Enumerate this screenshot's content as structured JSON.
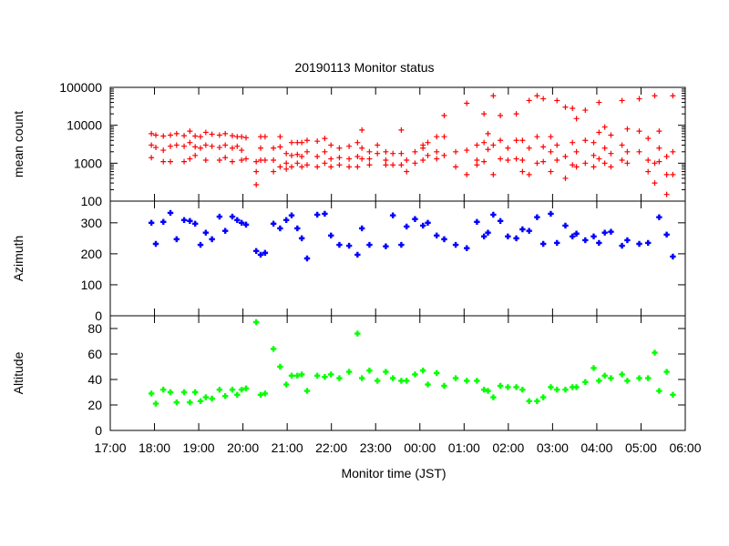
{
  "chart_data": [
    {
      "type": "scatter",
      "title": "20190113 Monitor status",
      "xlabel": "Monitor time (JST)",
      "ylabel": "mean count",
      "yscale": "log",
      "ylim": [
        100,
        100000
      ],
      "yticks": [
        "100",
        "1000",
        "10000",
        "100000"
      ],
      "ytick_values": [
        100,
        1000,
        10000,
        100000
      ],
      "color": "#ff0000",
      "marker": "plus",
      "points": [
        {
          "x": 17.93,
          "y": [
            6000,
            3000,
            1400
          ]
        },
        {
          "x": 18.03,
          "y": [
            5500,
            2600
          ]
        },
        {
          "x": 18.2,
          "y": [
            5200,
            2200,
            1100
          ]
        },
        {
          "x": 18.36,
          "y": [
            5500,
            2800,
            1100
          ]
        },
        {
          "x": 18.5,
          "y": [
            6000,
            3000
          ]
        },
        {
          "x": 18.67,
          "y": [
            5300,
            2800,
            1100
          ]
        },
        {
          "x": 18.8,
          "y": [
            7000,
            3500,
            1300
          ]
        },
        {
          "x": 18.92,
          "y": [
            5200,
            2700,
            1600
          ]
        },
        {
          "x": 19.04,
          "y": [
            5000,
            2500
          ]
        },
        {
          "x": 19.16,
          "y": [
            6500,
            3000,
            1200
          ]
        },
        {
          "x": 19.3,
          "y": [
            5800,
            2800
          ]
        },
        {
          "x": 19.47,
          "y": [
            5500,
            2600,
            1200
          ]
        },
        {
          "x": 19.6,
          "y": [
            6000,
            3000,
            1400
          ]
        },
        {
          "x": 19.76,
          "y": [
            5300,
            2500,
            1100
          ]
        },
        {
          "x": 19.87,
          "y": [
            5000,
            2800
          ]
        },
        {
          "x": 19.97,
          "y": [
            5000,
            2200,
            1200
          ]
        },
        {
          "x": 20.07,
          "y": [
            4700,
            1300
          ]
        },
        {
          "x": 20.3,
          "y": [
            1100,
            600,
            270
          ]
        },
        {
          "x": 20.4,
          "y": [
            5000,
            2500,
            1200
          ]
        },
        {
          "x": 20.5,
          "y": [
            5000,
            1200
          ]
        },
        {
          "x": 20.69,
          "y": [
            2500,
            1200,
            600
          ]
        },
        {
          "x": 20.84,
          "y": [
            5000,
            2700,
            800
          ]
        },
        {
          "x": 20.98,
          "y": [
            1800,
            1000,
            700
          ]
        },
        {
          "x": 21.1,
          "y": [
            3500,
            1600,
            800
          ]
        },
        {
          "x": 21.23,
          "y": [
            3500,
            1700,
            1000
          ]
        },
        {
          "x": 21.33,
          "y": [
            3500,
            1500,
            800
          ]
        },
        {
          "x": 21.45,
          "y": [
            4000,
            2000,
            900
          ]
        },
        {
          "x": 21.68,
          "y": [
            3800,
            1500,
            800
          ]
        },
        {
          "x": 21.85,
          "y": [
            4500,
            2000,
            1000
          ]
        },
        {
          "x": 21.99,
          "y": [
            3000,
            1300,
            800
          ]
        },
        {
          "x": 22.18,
          "y": [
            2500,
            1400,
            900
          ]
        },
        {
          "x": 22.4,
          "y": [
            2800,
            1300,
            800
          ]
        },
        {
          "x": 22.59,
          "y": [
            3500,
            1500,
            800
          ]
        },
        {
          "x": 22.69,
          "y": [
            7500,
            2500,
            1300
          ]
        },
        {
          "x": 22.86,
          "y": [
            2000,
            1300,
            900
          ]
        },
        {
          "x": 23.04,
          "y": [
            3000,
            1800
          ]
        },
        {
          "x": 23.23,
          "y": [
            2000,
            1200,
            900
          ]
        },
        {
          "x": 23.39,
          "y": [
            1800,
            900
          ]
        },
        {
          "x": 23.58,
          "y": [
            7500,
            1800,
            900
          ]
        },
        {
          "x": 23.7,
          "y": [
            1200,
            600
          ]
        },
        {
          "x": 23.89,
          "y": [
            2000,
            1000
          ]
        },
        {
          "x": 24.07,
          "y": [
            3000,
            2500,
            1200
          ]
        },
        {
          "x": 24.18,
          "y": [
            3500,
            1600
          ]
        },
        {
          "x": 24.38,
          "y": [
            5000,
            2000,
            1300
          ]
        },
        {
          "x": 24.55,
          "y": [
            18000,
            5000,
            1600
          ]
        },
        {
          "x": 24.81,
          "y": [
            2000,
            800
          ]
        },
        {
          "x": 25.06,
          "y": [
            38000,
            2200,
            500
          ]
        },
        {
          "x": 25.29,
          "y": [
            3000,
            1200,
            900
          ]
        },
        {
          "x": 25.45,
          "y": [
            20000,
            3500,
            1100
          ]
        },
        {
          "x": 25.54,
          "y": [
            6000,
            2300
          ]
        },
        {
          "x": 25.66,
          "y": [
            60000,
            3000,
            500
          ]
        },
        {
          "x": 25.82,
          "y": [
            18000,
            4000,
            1300
          ]
        },
        {
          "x": 25.99,
          "y": [
            2500,
            1200
          ]
        },
        {
          "x": 26.18,
          "y": [
            20000,
            4000,
            1300
          ]
        },
        {
          "x": 26.32,
          "y": [
            4000,
            1200,
            600
          ]
        },
        {
          "x": 26.47,
          "y": [
            45000,
            2500,
            500
          ]
        },
        {
          "x": 26.65,
          "y": [
            60000,
            5000,
            1000
          ]
        },
        {
          "x": 26.79,
          "y": [
            50000,
            2700,
            1100
          ]
        },
        {
          "x": 26.96,
          "y": [
            5000,
            2000,
            600
          ]
        },
        {
          "x": 27.1,
          "y": [
            45000,
            3000,
            1200
          ]
        },
        {
          "x": 27.29,
          "y": [
            30000,
            1500,
            400
          ]
        },
        {
          "x": 27.45,
          "y": [
            28000,
            3500,
            900
          ]
        },
        {
          "x": 27.54,
          "y": [
            15000,
            2000,
            800
          ]
        },
        {
          "x": 27.74,
          "y": [
            25000,
            4000,
            1000
          ]
        },
        {
          "x": 27.93,
          "y": [
            3500,
            1600,
            800
          ]
        },
        {
          "x": 28.05,
          "y": [
            40000,
            6500,
            1300
          ]
        },
        {
          "x": 28.18,
          "y": [
            9000,
            2500,
            1000
          ]
        },
        {
          "x": 28.32,
          "y": [
            5500,
            1800,
            800
          ]
        },
        {
          "x": 28.57,
          "y": [
            45000,
            3000,
            1200
          ]
        },
        {
          "x": 28.69,
          "y": [
            8000,
            2000,
            1000
          ]
        },
        {
          "x": 28.96,
          "y": [
            50000,
            7000,
            2000
          ]
        },
        {
          "x": 29.16,
          "y": [
            4500,
            1200,
            600
          ]
        },
        {
          "x": 29.31,
          "y": [
            60000,
            1000,
            300
          ]
        },
        {
          "x": 29.41,
          "y": [
            7000,
            2500,
            1100
          ]
        },
        {
          "x": 29.58,
          "y": [
            1500,
            500,
            150
          ]
        },
        {
          "x": 29.72,
          "y": [
            60000,
            2000,
            500
          ]
        }
      ]
    },
    {
      "type": "scatter",
      "ylabel": "Azimuth",
      "ylim": [
        0,
        370
      ],
      "yticks": [
        "0",
        "100",
        "200",
        "300"
      ],
      "ytick_values": [
        0,
        100,
        200,
        300
      ],
      "color": "#0000ff",
      "marker": "plus",
      "x": [
        17.93,
        18.03,
        18.2,
        18.36,
        18.5,
        18.67,
        18.8,
        18.92,
        19.04,
        19.16,
        19.3,
        19.47,
        19.6,
        19.76,
        19.87,
        19.97,
        20.07,
        20.3,
        20.4,
        20.5,
        20.69,
        20.84,
        20.98,
        21.1,
        21.23,
        21.33,
        21.45,
        21.68,
        21.85,
        21.99,
        22.18,
        22.4,
        22.59,
        22.69,
        22.86,
        23.23,
        23.39,
        23.58,
        23.7,
        23.89,
        24.07,
        24.18,
        24.38,
        24.55,
        24.81,
        25.06,
        25.29,
        25.45,
        25.54,
        25.66,
        25.82,
        25.99,
        26.18,
        26.32,
        26.47,
        26.65,
        26.79,
        26.96,
        27.1,
        27.29,
        27.45,
        27.54,
        27.74,
        27.93,
        28.05,
        28.18,
        28.32,
        28.57,
        28.69,
        28.96,
        29.16,
        29.41,
        29.58,
        29.72
      ],
      "values": [
        300,
        232,
        303,
        332,
        247,
        309,
        306,
        297,
        229,
        268,
        247,
        320,
        274,
        320,
        309,
        300,
        294,
        209,
        197,
        203,
        297,
        282,
        309,
        324,
        282,
        250,
        185,
        326,
        329,
        259,
        229,
        226,
        197,
        282,
        229,
        224,
        324,
        229,
        288,
        312,
        291,
        300,
        259,
        247,
        229,
        218,
        303,
        256,
        268,
        326,
        306,
        256,
        250,
        279,
        274,
        318,
        232,
        329,
        235,
        291,
        256,
        265,
        244,
        256,
        235,
        268,
        271,
        226,
        244,
        232,
        235,
        318,
        262,
        191
      ]
    },
    {
      "type": "scatter",
      "ylabel": "Altitude",
      "ylim": [
        0,
        90
      ],
      "yticks": [
        "0",
        "20",
        "40",
        "60",
        "80"
      ],
      "ytick_values": [
        0,
        20,
        40,
        60,
        80
      ],
      "color": "#00ff00",
      "marker": "plus",
      "x": [
        17.93,
        18.03,
        18.2,
        18.36,
        18.5,
        18.67,
        18.8,
        18.92,
        19.04,
        19.16,
        19.3,
        19.47,
        19.6,
        19.76,
        19.87,
        19.97,
        20.07,
        20.3,
        20.4,
        20.5,
        20.69,
        20.84,
        20.98,
        21.1,
        21.23,
        21.33,
        21.45,
        21.68,
        21.85,
        21.99,
        22.18,
        22.4,
        22.59,
        22.69,
        22.86,
        23.04,
        23.23,
        23.39,
        23.58,
        23.7,
        23.89,
        24.07,
        24.18,
        24.38,
        24.55,
        24.81,
        25.06,
        25.29,
        25.45,
        25.54,
        25.66,
        25.82,
        25.99,
        26.18,
        26.32,
        26.47,
        26.65,
        26.79,
        26.96,
        27.1,
        27.29,
        27.45,
        27.54,
        27.74,
        27.93,
        28.05,
        28.18,
        28.32,
        28.57,
        28.69,
        28.96,
        29.16,
        29.31,
        29.41,
        29.58,
        29.72
      ],
      "values": [
        29,
        21,
        32,
        30,
        22,
        30,
        22,
        30,
        23,
        26,
        25,
        32,
        27,
        32,
        28,
        32,
        33,
        85,
        28,
        29,
        64,
        50,
        36,
        43,
        43,
        44,
        31,
        43,
        42,
        44,
        41,
        46,
        76,
        41,
        47,
        39,
        46,
        41,
        39,
        39,
        44,
        47,
        36,
        45,
        35,
        41,
        39,
        39,
        32,
        31,
        26,
        35,
        34,
        34,
        32,
        23,
        23,
        26,
        34,
        32,
        32,
        34,
        34,
        38,
        49,
        39,
        43,
        41,
        44,
        39,
        41,
        41,
        61,
        31,
        46,
        28
      ]
    }
  ],
  "x_axis": {
    "xlim": [
      17,
      30
    ],
    "xtick_values": [
      17,
      18,
      19,
      20,
      21,
      22,
      23,
      24,
      25,
      26,
      27,
      28,
      29,
      30
    ],
    "xticks": [
      "17:00",
      "18:00",
      "19:00",
      "20:00",
      "21:00",
      "22:00",
      "23:00",
      "00:00",
      "01:00",
      "02:00",
      "03:00",
      "04:00",
      "05:00",
      "06:00"
    ]
  }
}
